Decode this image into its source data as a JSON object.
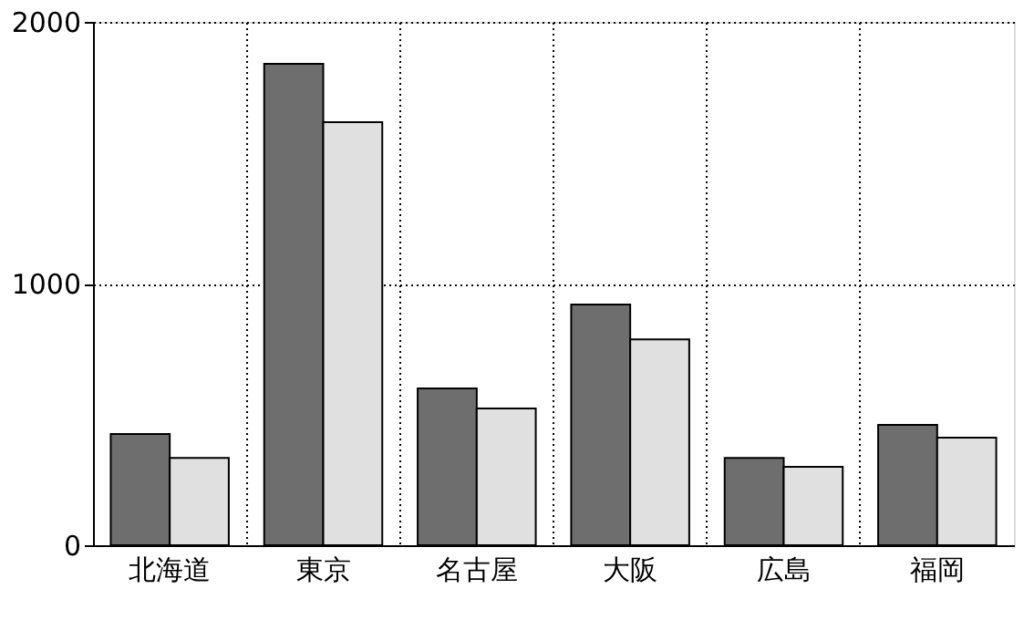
{
  "chart_data": {
    "type": "bar",
    "categories": [
      "北海道",
      "東京",
      "名古屋",
      "大阪",
      "広島",
      "福岡"
    ],
    "series": [
      {
        "color": "#6e6e6e",
        "values": [
          425,
          1840,
          599,
          920,
          334,
          460
        ]
      },
      {
        "color": "#e0e0e0",
        "values": [
          334,
          1617,
          523,
          787,
          300,
          411
        ]
      }
    ],
    "ylim": [
      0,
      2000
    ],
    "yticks": [
      0,
      1000,
      2000
    ],
    "grid": true
  }
}
